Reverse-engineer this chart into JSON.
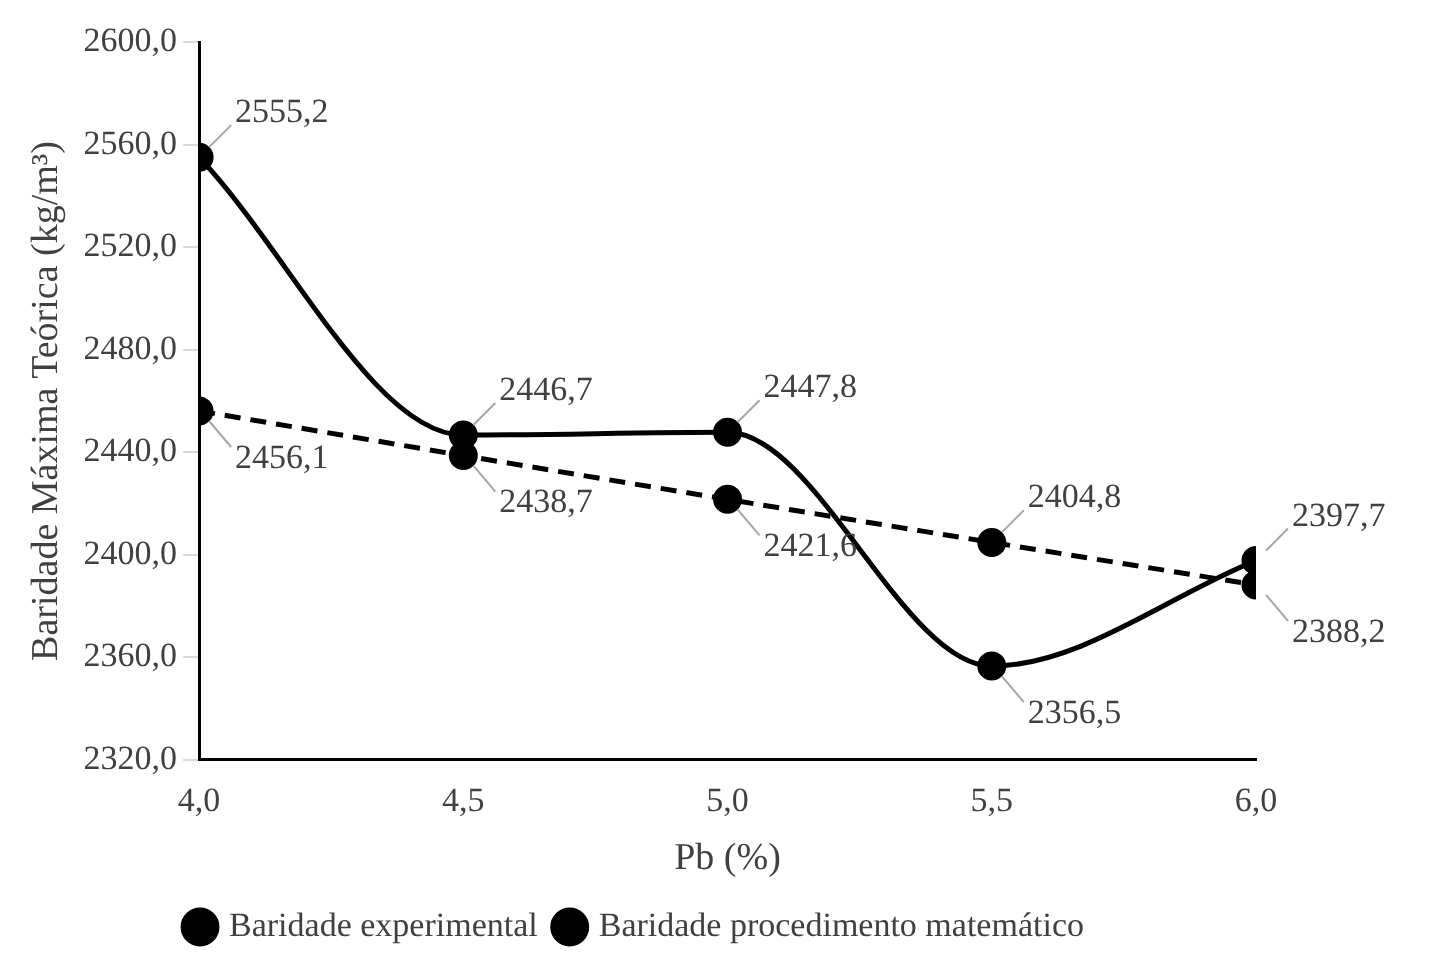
{
  "chart_data": {
    "type": "line",
    "xlabel": "Pb (%)",
    "ylabel": "Baridade Máxima Teórica (kg/m³)",
    "x": [
      4.0,
      4.5,
      5.0,
      5.5,
      6.0
    ],
    "series": [
      {
        "name": "Baridade experimental",
        "color": "#000000",
        "values": [
          2555.2,
          2446.7,
          2447.8,
          2356.5,
          2397.7
        ],
        "value_labels": [
          "2555,2",
          "2446,7",
          "2447,8",
          "2356,5",
          "2397,7"
        ],
        "line_style": "solid"
      },
      {
        "name": "Baridade procedimento matemático",
        "color": "#000000",
        "values": [
          2456.1,
          2438.7,
          2421.6,
          2404.8,
          2388.2
        ],
        "value_labels": [
          "2456,1",
          "2438,7",
          "2421,6",
          "2404,8",
          "2388,2"
        ],
        "line_style": "dashed"
      }
    ],
    "xlim": [
      4.0,
      6.0
    ],
    "xticks": [
      {
        "value": 4.0,
        "label": "4,0"
      },
      {
        "value": 4.5,
        "label": "4,5"
      },
      {
        "value": 5.0,
        "label": "5,0"
      },
      {
        "value": 5.5,
        "label": "5,5"
      },
      {
        "value": 6.0,
        "label": "6,0"
      }
    ],
    "ylim": [
      2320,
      2600
    ],
    "yticks": [
      {
        "value": 2320,
        "label": "2320,0"
      },
      {
        "value": 2360,
        "label": "2360,0"
      },
      {
        "value": 2400,
        "label": "2400,0"
      },
      {
        "value": 2440,
        "label": "2440,0"
      },
      {
        "value": 2480,
        "label": "2480,0"
      },
      {
        "value": 2520,
        "label": "2520,0"
      },
      {
        "value": 2560,
        "label": "2560,0"
      },
      {
        "value": 2600,
        "label": "2600,0"
      }
    ],
    "grid": false,
    "legend": "bottom",
    "marker": "circle"
  }
}
